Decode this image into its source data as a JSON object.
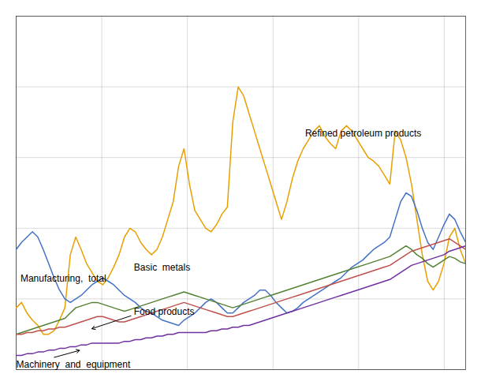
{
  "chart_data": {
    "type": "line",
    "x": [
      2000,
      2000.253,
      2000.506,
      2000.759,
      2001.012,
      2001.2651,
      2001.5181,
      2001.7711,
      2002.0241,
      2002.2771,
      2002.5301,
      2002.7831,
      2003.0361,
      2003.2892,
      2003.5422,
      2003.7952,
      2004.0482,
      2004.3012,
      2004.5542,
      2004.8072,
      2005.0602,
      2005.3133,
      2005.5663,
      2005.8193,
      2006.0723,
      2006.3253,
      2006.5783,
      2006.8313,
      2007.0843,
      2007.3373,
      2007.5904,
      2007.8434,
      2008.0964,
      2008.3494,
      2008.6024,
      2008.8554,
      2009.1084,
      2009.3614,
      2009.6145,
      2009.8675,
      2010.1205,
      2010.3735,
      2010.6265,
      2010.8795,
      2011.1325,
      2011.3855,
      2011.6386,
      2011.8916,
      2012.1446,
      2012.3976,
      2012.6506,
      2012.9036,
      2013.1566,
      2013.4096,
      2013.6627,
      2013.9157,
      2014.1687,
      2014.4217,
      2014.6747,
      2014.9277,
      2015.1807,
      2015.4337,
      2015.6867,
      2015.9398,
      2016.1928,
      2016.4458,
      2016.6988,
      2016.9518,
      2017.2048,
      2017.4578,
      2017.7108,
      2017.9639,
      2018.2169,
      2018.4699,
      2018.7229,
      2018.9759,
      2019.2289,
      2019.4819,
      2019.7349,
      2019.988,
      2020.241,
      2020.494,
      2020.747,
      2021
    ],
    "series": [
      {
        "name": "Refined petroleum products",
        "color": "#E8A000",
        "values": [
          115,
          118,
          112,
          108,
          105,
          100,
          100,
          102,
          108,
          115,
          145,
          155,
          148,
          140,
          135,
          130,
          128,
          132,
          138,
          145,
          155,
          160,
          158,
          152,
          148,
          145,
          148,
          155,
          165,
          175,
          195,
          205,
          185,
          170,
          165,
          160,
          158,
          162,
          168,
          172,
          220,
          240,
          235,
          225,
          215,
          205,
          195,
          185,
          175,
          165,
          175,
          188,
          198,
          205,
          210,
          215,
          218,
          212,
          208,
          205,
          215,
          218,
          215,
          210,
          205,
          200,
          198,
          195,
          190,
          185,
          215,
          210,
          200,
          185,
          165,
          145,
          130,
          125,
          130,
          140,
          155,
          160,
          148,
          140
        ]
      },
      {
        "name": "Basic metals",
        "color": "#4472C4",
        "values": [
          148,
          152,
          155,
          158,
          155,
          148,
          140,
          132,
          125,
          120,
          118,
          120,
          122,
          125,
          128,
          130,
          132,
          130,
          128,
          125,
          122,
          120,
          118,
          115,
          113,
          112,
          110,
          108,
          107,
          106,
          105,
          108,
          110,
          112,
          115,
          118,
          120,
          118,
          115,
          112,
          112,
          115,
          118,
          120,
          122,
          125,
          125,
          122,
          118,
          115,
          112,
          113,
          115,
          118,
          120,
          122,
          124,
          126,
          128,
          130,
          132,
          135,
          138,
          140,
          142,
          145,
          148,
          150,
          152,
          155,
          165,
          175,
          180,
          178,
          170,
          160,
          152,
          148,
          155,
          162,
          168,
          165,
          158,
          152
        ]
      },
      {
        "name": "Manufacturing, total",
        "color": "#548235",
        "values": [
          100,
          101,
          102,
          103,
          104,
          105,
          106,
          107,
          108,
          109,
          112,
          115,
          116,
          117,
          118,
          118,
          117,
          116,
          115,
          114,
          113,
          114,
          115,
          116,
          117,
          118,
          119,
          120,
          121,
          122,
          123,
          124,
          123,
          122,
          121,
          120,
          119,
          118,
          117,
          116,
          115,
          116,
          117,
          118,
          119,
          120,
          121,
          122,
          123,
          124,
          125,
          126,
          127,
          128,
          129,
          130,
          131,
          132,
          133,
          134,
          135,
          136,
          137,
          138,
          139,
          140,
          141,
          142,
          143,
          144,
          146,
          148,
          150,
          148,
          145,
          143,
          140,
          138,
          140,
          142,
          144,
          143,
          141,
          140
        ]
      },
      {
        "name": "Food products",
        "color": "#C0504D",
        "values": [
          100,
          100,
          101,
          101,
          102,
          102,
          103,
          103,
          104,
          104,
          105,
          106,
          107,
          108,
          109,
          110,
          110,
          109,
          108,
          107,
          107,
          108,
          109,
          110,
          111,
          112,
          113,
          114,
          115,
          116,
          117,
          118,
          117,
          116,
          115,
          114,
          113,
          112,
          111,
          110,
          110,
          111,
          112,
          113,
          114,
          115,
          116,
          117,
          118,
          119,
          120,
          121,
          122,
          123,
          124,
          125,
          126,
          127,
          128,
          129,
          130,
          131,
          132,
          133,
          134,
          135,
          136,
          137,
          138,
          139,
          141,
          143,
          145,
          147,
          148,
          149,
          150,
          151,
          152,
          153,
          154,
          152,
          150,
          148
        ]
      },
      {
        "name": "Machinery and equipment",
        "color": "#7030A0",
        "values": [
          88,
          88,
          89,
          89,
          90,
          90,
          91,
          91,
          92,
          92,
          93,
          93,
          94,
          94,
          95,
          95,
          95,
          95,
          95,
          95,
          96,
          96,
          97,
          97,
          98,
          98,
          99,
          99,
          100,
          100,
          101,
          101,
          101,
          101,
          101,
          101,
          102,
          102,
          103,
          103,
          104,
          104,
          105,
          105,
          106,
          107,
          108,
          109,
          110,
          111,
          112,
          113,
          114,
          115,
          116,
          117,
          118,
          119,
          120,
          121,
          122,
          123,
          124,
          125,
          126,
          127,
          128,
          129,
          130,
          131,
          133,
          135,
          137,
          139,
          140,
          141,
          142,
          143,
          144,
          145,
          147,
          148,
          149,
          150
        ]
      }
    ],
    "xlim": [
      2000,
      2021
    ],
    "xticks": [
      2000,
      2004,
      2008,
      2012,
      2016,
      2020
    ],
    "ylim": [
      80,
      280
    ],
    "yticks": [
      80,
      120,
      160,
      200,
      240,
      280
    ],
    "grid": true,
    "tick_labels": false,
    "annotations": [
      {
        "text": "Refined petroleum products",
        "x": 2013.5,
        "y": 212
      },
      {
        "text": "Basic  metals",
        "x": 2005.5,
        "y": 136
      },
      {
        "text": "Manufacturing,  total",
        "x": 2000.2,
        "y": 130
      },
      {
        "text": "Food products",
        "x": 2005.5,
        "y": 111,
        "arrow_x": 2003.5,
        "arrow_y": 103
      },
      {
        "text": "Machinery  and  equipment",
        "x": 2000.0,
        "y": 81,
        "arrow_x": 2003.0,
        "arrow_y": 91
      }
    ]
  }
}
